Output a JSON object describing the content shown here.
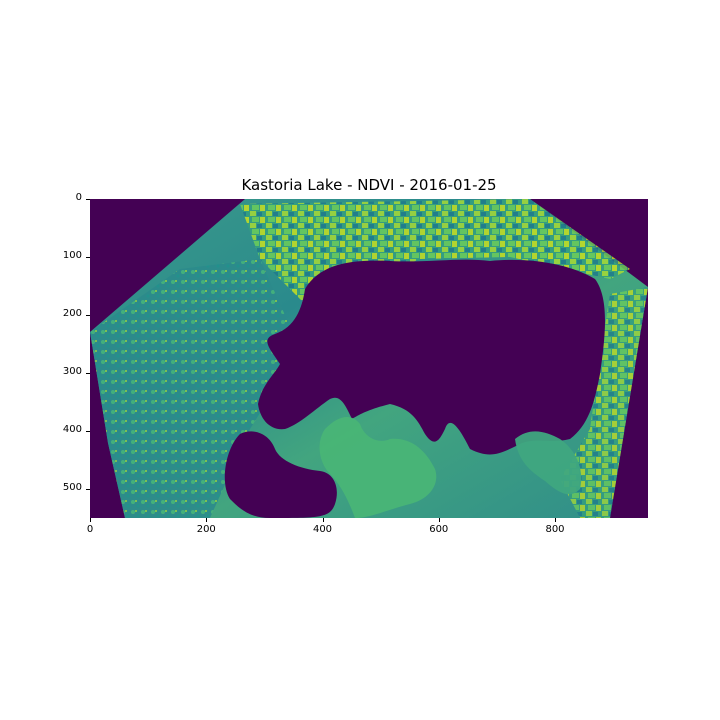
{
  "figure": {
    "title": "Kastoria Lake - NDVI - 2016-01-25"
  },
  "image": {
    "colormap": "viridis",
    "background_color": "#440154",
    "x_range": [
      0,
      960
    ],
    "y_range": [
      0,
      550
    ],
    "x_ticks": [
      "0",
      "200",
      "400",
      "600",
      "800"
    ],
    "y_ticks": [
      "0",
      "100",
      "200",
      "300",
      "400",
      "500"
    ]
  }
}
